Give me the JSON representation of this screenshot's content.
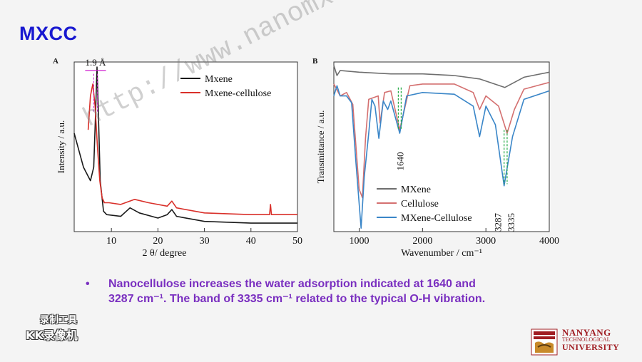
{
  "slide": {
    "title": "MXCC",
    "bullet_symbol": "•",
    "bullet_text": "Nanocellulose increases the water adsorption indicated at 1640 and 3287 cm⁻¹. The band of 3335 cm⁻¹ related to the typical O-H vibration.",
    "watermark": "http://www.nanomxenes.com",
    "recorder_line1": "录制工具",
    "recorder_line2": "KK录像机",
    "logo": {
      "line1": "NANYANG",
      "line2": "TECHNOLOGICAL",
      "line3": "UNIVERSITY"
    }
  },
  "colors": {
    "title": "#1818d0",
    "bullet": "#7a2fc0",
    "black": "#1a1a1a",
    "red": "#d9302a",
    "pink": "#d47070",
    "gray": "#6e6e6e",
    "blue": "#3a86c8",
    "green": "#22aa44",
    "magenta": "#d020d0"
  },
  "chart_data": [
    {
      "panel": "A",
      "type": "line",
      "title": "",
      "xlabel": "2 θ/ degree",
      "ylabel": "Intensity / a.u.",
      "xlim": [
        2,
        50
      ],
      "x_ticks": [
        10,
        20,
        30,
        40,
        50
      ],
      "y_ticks": [],
      "annotation": "1.9 Å",
      "legend_position": "top-right",
      "series": [
        {
          "name": "Mxene",
          "color": "#1a1a1a",
          "points": [
            [
              2,
              0.58
            ],
            [
              4,
              0.38
            ],
            [
              5.5,
              0.3
            ],
            [
              6.2,
              0.38
            ],
            [
              6.6,
              0.7
            ],
            [
              6.9,
              0.97
            ],
            [
              7.2,
              0.7
            ],
            [
              7.6,
              0.3
            ],
            [
              8.3,
              0.12
            ],
            [
              9,
              0.1
            ],
            [
              12,
              0.09
            ],
            [
              14,
              0.14
            ],
            [
              16,
              0.11
            ],
            [
              20,
              0.08
            ],
            [
              22,
              0.1
            ],
            [
              23,
              0.13
            ],
            [
              24,
              0.09
            ],
            [
              30,
              0.06
            ],
            [
              40,
              0.05
            ],
            [
              50,
              0.05
            ]
          ]
        },
        {
          "name": "Mxene-cellulose",
          "color": "#d9302a",
          "points": [
            [
              5,
              0.6
            ],
            [
              5.5,
              0.8
            ],
            [
              6,
              0.87
            ],
            [
              6.5,
              0.74
            ],
            [
              7,
              0.5
            ],
            [
              7.5,
              0.3
            ],
            [
              8,
              0.2
            ],
            [
              8.5,
              0.17
            ],
            [
              9.5,
              0.17
            ],
            [
              12,
              0.16
            ],
            [
              15,
              0.19
            ],
            [
              18,
              0.17
            ],
            [
              22,
              0.15
            ],
            [
              23,
              0.18
            ],
            [
              24,
              0.14
            ],
            [
              30,
              0.11
            ],
            [
              40,
              0.1
            ],
            [
              44,
              0.1
            ],
            [
              44.2,
              0.16
            ],
            [
              44.4,
              0.1
            ],
            [
              50,
              0.1
            ]
          ]
        }
      ]
    },
    {
      "panel": "B",
      "type": "line",
      "title": "",
      "xlabel": "Wavenumber / cm⁻¹",
      "ylabel": "Transmittance / a.u.",
      "xlim": [
        600,
        4000
      ],
      "x_ticks": [
        1000,
        2000,
        3000,
        4000
      ],
      "y_ticks": [],
      "annotations": [
        "1640",
        "3287",
        "3335"
      ],
      "legend_position": "bottom-center",
      "series": [
        {
          "name": "MXene",
          "color": "#6e6e6e",
          "points": [
            [
              600,
              0.98
            ],
            [
              650,
              0.92
            ],
            [
              700,
              0.95
            ],
            [
              1000,
              0.94
            ],
            [
              1500,
              0.93
            ],
            [
              2000,
              0.93
            ],
            [
              2500,
              0.92
            ],
            [
              2900,
              0.9
            ],
            [
              3300,
              0.85
            ],
            [
              3600,
              0.91
            ],
            [
              4000,
              0.94
            ]
          ]
        },
        {
          "name": "Cellulose",
          "color": "#d47070",
          "points": [
            [
              600,
              0.87
            ],
            [
              700,
              0.8
            ],
            [
              800,
              0.82
            ],
            [
              900,
              0.75
            ],
            [
              1000,
              0.25
            ],
            [
              1050,
              0.2
            ],
            [
              1100,
              0.55
            ],
            [
              1150,
              0.78
            ],
            [
              1300,
              0.8
            ],
            [
              1330,
              0.64
            ],
            [
              1400,
              0.82
            ],
            [
              1500,
              0.83
            ],
            [
              1640,
              0.6
            ],
            [
              1800,
              0.86
            ],
            [
              2000,
              0.87
            ],
            [
              2500,
              0.87
            ],
            [
              2800,
              0.82
            ],
            [
              2900,
              0.72
            ],
            [
              3000,
              0.8
            ],
            [
              3200,
              0.74
            ],
            [
              3335,
              0.58
            ],
            [
              3450,
              0.72
            ],
            [
              3600,
              0.84
            ],
            [
              4000,
              0.88
            ]
          ]
        },
        {
          "name": "MXene-Cellulose",
          "color": "#3a86c8",
          "points": [
            [
              600,
              0.8
            ],
            [
              650,
              0.86
            ],
            [
              700,
              0.8
            ],
            [
              800,
              0.8
            ],
            [
              880,
              0.76
            ],
            [
              950,
              0.4
            ],
            [
              1030,
              0.02
            ],
            [
              1080,
              0.32
            ],
            [
              1150,
              0.58
            ],
            [
              1200,
              0.78
            ],
            [
              1250,
              0.74
            ],
            [
              1310,
              0.55
            ],
            [
              1380,
              0.77
            ],
            [
              1450,
              0.72
            ],
            [
              1500,
              0.77
            ],
            [
              1640,
              0.58
            ],
            [
              1750,
              0.8
            ],
            [
              2000,
              0.82
            ],
            [
              2500,
              0.81
            ],
            [
              2800,
              0.74
            ],
            [
              2900,
              0.56
            ],
            [
              3000,
              0.74
            ],
            [
              3150,
              0.63
            ],
            [
              3287,
              0.27
            ],
            [
              3420,
              0.56
            ],
            [
              3600,
              0.78
            ],
            [
              4000,
              0.83
            ]
          ]
        }
      ]
    }
  ]
}
